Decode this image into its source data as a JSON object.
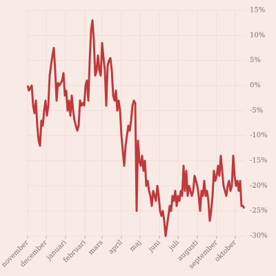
{
  "chart_data": {
    "type": "line",
    "x": [
      0,
      2,
      4,
      6,
      8,
      10,
      12,
      14,
      16,
      18,
      20,
      22,
      24,
      26,
      28,
      30,
      32,
      34,
      36,
      38,
      40,
      42,
      44,
      46,
      48,
      50,
      52,
      54,
      56,
      58,
      60,
      62,
      64,
      66,
      68,
      70,
      72,
      74,
      76,
      78,
      80,
      82,
      84,
      86,
      88,
      90,
      92,
      94,
      96,
      98,
      100,
      102,
      104,
      106,
      108,
      110,
      112,
      114,
      116,
      118,
      120,
      122,
      124,
      126,
      128,
      130,
      132,
      134,
      136,
      138,
      140,
      142,
      144,
      146,
      148,
      150,
      152,
      154,
      156,
      158,
      160,
      162,
      164,
      166,
      168,
      170,
      172,
      174,
      176,
      178,
      180,
      182,
      184,
      186,
      188,
      190,
      192,
      194,
      196,
      198,
      200,
      202,
      204,
      206,
      208,
      210,
      212,
      214,
      216,
      218,
      220,
      222,
      224,
      226,
      228,
      230,
      232,
      234,
      236,
      238,
      240,
      242,
      244,
      246,
      248,
      250,
      252,
      254,
      256,
      258,
      260,
      262,
      264,
      266,
      268,
      270,
      272,
      274,
      276,
      278,
      280,
      282,
      284,
      286,
      288,
      290,
      292,
      294,
      296,
      298,
      300,
      302,
      304,
      306,
      308,
      310,
      312,
      314
    ],
    "series": [
      {
        "color": "#c0393b",
        "values": [
          0,
          -1,
          -0.5,
          0,
          -4,
          -5.5,
          -3,
          -8,
          -11,
          -12,
          -7,
          -8,
          -5,
          -3,
          -6,
          -4,
          2,
          4,
          6,
          7.5,
          3,
          -3,
          0.5,
          0,
          0.5,
          1,
          2.5,
          -2,
          -1,
          -5,
          -3,
          -6,
          -2,
          -5,
          -7,
          -8,
          -9,
          -8,
          -3,
          -4,
          -3.5,
          -4,
          0,
          1,
          -3,
          5,
          11,
          13,
          9,
          2,
          3,
          6,
          3,
          2,
          8.5,
          5.5,
          3,
          -4,
          4,
          5,
          5.5,
          3,
          -2,
          -3,
          -1,
          -5,
          -3,
          -5,
          -10,
          -13,
          -16,
          -12,
          -10,
          -8,
          -9,
          -7,
          -4,
          -3,
          -3.5,
          -25,
          -11,
          -15,
          -16,
          -14,
          -17,
          -15,
          -20,
          -19,
          -21,
          -22,
          -24,
          -21,
          -22,
          -23,
          -20,
          -22,
          -25,
          -26,
          -25,
          -27,
          -30,
          -28,
          -26,
          -24,
          -25,
          -22,
          -23,
          -21,
          -24,
          -22,
          -23,
          -21,
          -22,
          -16,
          -21,
          -17,
          -22,
          -20,
          -21,
          -22,
          -21,
          -18,
          -19,
          -20,
          -22,
          -25,
          -21,
          -22,
          -19,
          -22,
          -21,
          -23,
          -27,
          -25,
          -22,
          -17,
          -19,
          -18,
          -16,
          -18,
          -14,
          -17,
          -20,
          -21,
          -22,
          -20,
          -19,
          -21,
          -20,
          -14,
          -18,
          -20,
          -19,
          -21,
          -19,
          -24,
          -24,
          -24.5
        ]
      }
    ],
    "xlim": [
      0,
      315
    ],
    "xticks": [
      {
        "value": 0,
        "label": "november"
      },
      {
        "value": 27,
        "label": "december"
      },
      {
        "value": 55,
        "label": "januari"
      },
      {
        "value": 83,
        "label": "februari"
      },
      {
        "value": 108,
        "label": "mars"
      },
      {
        "value": 136,
        "label": "april"
      },
      {
        "value": 163,
        "label": "maj"
      },
      {
        "value": 191,
        "label": "juni"
      },
      {
        "value": 218,
        "label": "juli"
      },
      {
        "value": 246,
        "label": "augusti"
      },
      {
        "value": 274,
        "label": "september"
      },
      {
        "value": 301,
        "label": "oktober"
      }
    ],
    "ylim": [
      -30,
      15
    ],
    "yticks": [
      {
        "value": 15,
        "label": "15%"
      },
      {
        "value": 10,
        "label": "10%"
      },
      {
        "value": 5,
        "label": "5%"
      },
      {
        "value": 0,
        "label": "0%"
      },
      {
        "value": -5,
        "label": "-5%"
      },
      {
        "value": -10,
        "label": "-10%"
      },
      {
        "value": -15,
        "label": "-15%"
      },
      {
        "value": -20,
        "label": "-20%"
      },
      {
        "value": -25,
        "label": "-25%"
      },
      {
        "value": -30,
        "label": "-30%"
      }
    ],
    "grid": true
  }
}
